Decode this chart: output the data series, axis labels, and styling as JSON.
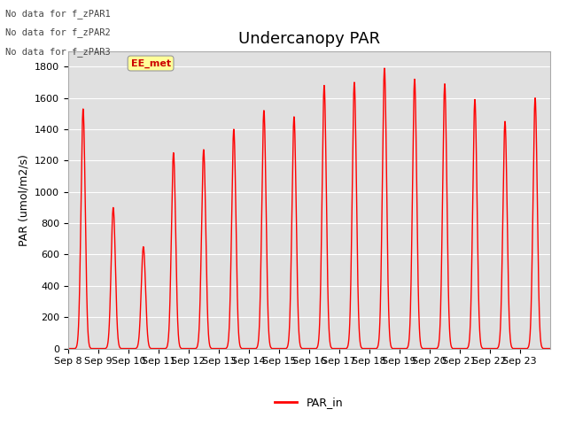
{
  "title": "Undercanopy PAR",
  "ylabel": "PAR (umol/m2/s)",
  "xlabel": "",
  "ylim": [
    0,
    1900
  ],
  "yticks": [
    0,
    200,
    400,
    600,
    800,
    1000,
    1200,
    1400,
    1600,
    1800
  ],
  "x_labels": [
    "Sep 8",
    "Sep 9",
    "Sep 10",
    "Sep 11",
    "Sep 12",
    "Sep 13",
    "Sep 14",
    "Sep 15",
    "Sep 16",
    "Sep 17",
    "Sep 18",
    "Sep 19",
    "Sep 20",
    "Sep 21",
    "Sep 22",
    "Sep 23"
  ],
  "line_color": "#FF0000",
  "line_width": 1.0,
  "background_color": "#ffffff",
  "plot_bg_color": "#e0e0e0",
  "legend_label": "PAR_in",
  "annotations": [
    "No data for f_zPAR1",
    "No data for f_zPAR2",
    "No data for f_zPAR3"
  ],
  "annotation_color": "#444444",
  "ee_met_color": "#CC0000",
  "ee_met_bg": "#FFFF99",
  "title_fontsize": 13,
  "axis_fontsize": 9,
  "tick_fontsize": 8,
  "num_days": 16,
  "peak_values": [
    1530,
    900,
    650,
    1250,
    1270,
    1400,
    1520,
    1480,
    1680,
    1700,
    1790,
    1720,
    1690,
    1590,
    1450,
    1600
  ]
}
